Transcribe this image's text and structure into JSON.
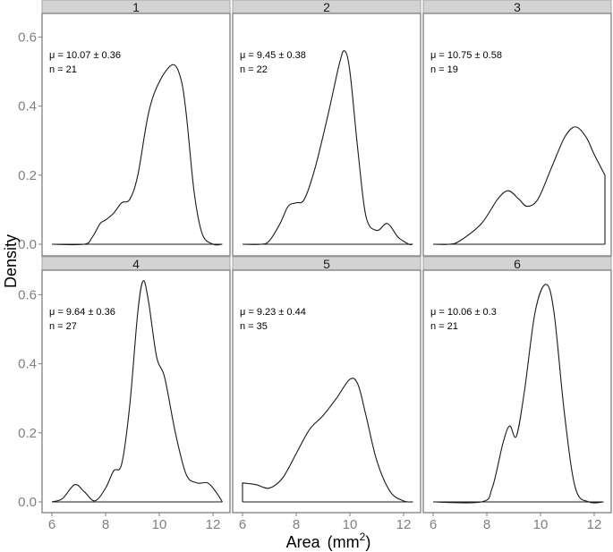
{
  "chart_data": {
    "type": "line",
    "subtype": "faceted density",
    "xlabel": "Area",
    "xlabel_unit": "(mm",
    "xlabel_unit_sup": "2",
    "xlabel_unit_close": ")",
    "ylabel": "Density",
    "xlim": [
      5.8,
      12.6
    ],
    "ylim": [
      -0.03,
      0.67
    ],
    "x_ticks": [
      "6",
      "8",
      "10",
      "12"
    ],
    "x_tick_values": [
      6,
      8,
      10,
      12
    ],
    "y_ticks": [
      "0.0",
      "0.2",
      "0.4",
      "0.6"
    ],
    "y_tick_values": [
      0,
      0.2,
      0.4,
      0.6
    ],
    "grid": false,
    "line_color": "#1a1a1a",
    "strip_color": "#d3d3d3",
    "panels": [
      {
        "label": "1",
        "annotation_mu": "μ = 10.07 ± 0.36",
        "annotation_n": "n = 21",
        "x": [
          6.0,
          7.2,
          7.5,
          7.8,
          8.0,
          8.3,
          8.6,
          8.9,
          9.2,
          9.6,
          10.0,
          10.5,
          10.8,
          11.0,
          11.3,
          11.6,
          12.0,
          12.33
        ],
        "y": [
          0,
          0,
          0.02,
          0.06,
          0.07,
          0.09,
          0.12,
          0.13,
          0.2,
          0.38,
          0.47,
          0.52,
          0.48,
          0.38,
          0.15,
          0.03,
          0,
          0
        ]
      },
      {
        "label": "2",
        "annotation_mu": "μ = 9.45 ± 0.38",
        "annotation_n": "n = 22",
        "x": [
          6.0,
          6.7,
          7.0,
          7.4,
          7.7,
          8.0,
          8.3,
          8.7,
          9.2,
          9.6,
          9.8,
          10.0,
          10.3,
          10.6,
          11.0,
          11.4,
          11.8,
          12.2,
          12.33
        ],
        "y": [
          0,
          0,
          0.01,
          0.06,
          0.11,
          0.12,
          0.13,
          0.22,
          0.38,
          0.52,
          0.56,
          0.5,
          0.27,
          0.08,
          0.04,
          0.06,
          0.02,
          0,
          0
        ]
      },
      {
        "label": "3",
        "annotation_mu": "μ = 10.75 ± 0.58",
        "annotation_n": "n = 19",
        "x": [
          6.0,
          6.6,
          7.0,
          7.8,
          8.4,
          8.8,
          9.2,
          9.5,
          9.9,
          10.4,
          10.9,
          11.3,
          11.7,
          12.0,
          12.4
        ],
        "y": [
          0,
          0,
          0.01,
          0.06,
          0.13,
          0.155,
          0.13,
          0.11,
          0.13,
          0.22,
          0.31,
          0.34,
          0.31,
          0.26,
          0.2
        ],
        "right_edge_drop": true
      },
      {
        "label": "4",
        "annotation_mu": "μ = 9.64 ± 0.36",
        "annotation_n": "n = 27",
        "x": [
          6.0,
          6.4,
          6.85,
          7.2,
          7.6,
          8.0,
          8.3,
          8.6,
          8.9,
          9.2,
          9.4,
          9.6,
          9.9,
          10.2,
          10.6,
          11.0,
          11.4,
          11.8,
          12.1,
          12.35
        ],
        "y": [
          0,
          0.01,
          0.05,
          0.03,
          0.003,
          0.04,
          0.09,
          0.11,
          0.28,
          0.55,
          0.64,
          0.58,
          0.42,
          0.36,
          0.2,
          0.08,
          0.055,
          0.055,
          0.03,
          0
        ]
      },
      {
        "label": "5",
        "annotation_mu": "μ = 9.23 ± 0.44",
        "annotation_n": "n = 35",
        "x": [
          6.0,
          6.5,
          7.0,
          7.5,
          8.0,
          8.5,
          9.0,
          9.5,
          10.0,
          10.3,
          10.6,
          11.0,
          11.5,
          12.0,
          12.35
        ],
        "y": [
          0.055,
          0.05,
          0.04,
          0.07,
          0.14,
          0.21,
          0.25,
          0.3,
          0.355,
          0.34,
          0.25,
          0.12,
          0.03,
          0.003,
          0
        ],
        "left_edge_rise": true
      },
      {
        "label": "6",
        "annotation_mu": "μ = 10.06 ± 0.3",
        "annotation_n": "n = 21",
        "x": [
          6.0,
          7.8,
          8.2,
          8.6,
          8.85,
          9.1,
          9.4,
          9.8,
          10.2,
          10.5,
          10.9,
          11.3,
          11.8,
          12.35
        ],
        "y": [
          0,
          0,
          0.04,
          0.17,
          0.22,
          0.19,
          0.32,
          0.55,
          0.63,
          0.55,
          0.25,
          0.04,
          0,
          0
        ]
      }
    ]
  }
}
